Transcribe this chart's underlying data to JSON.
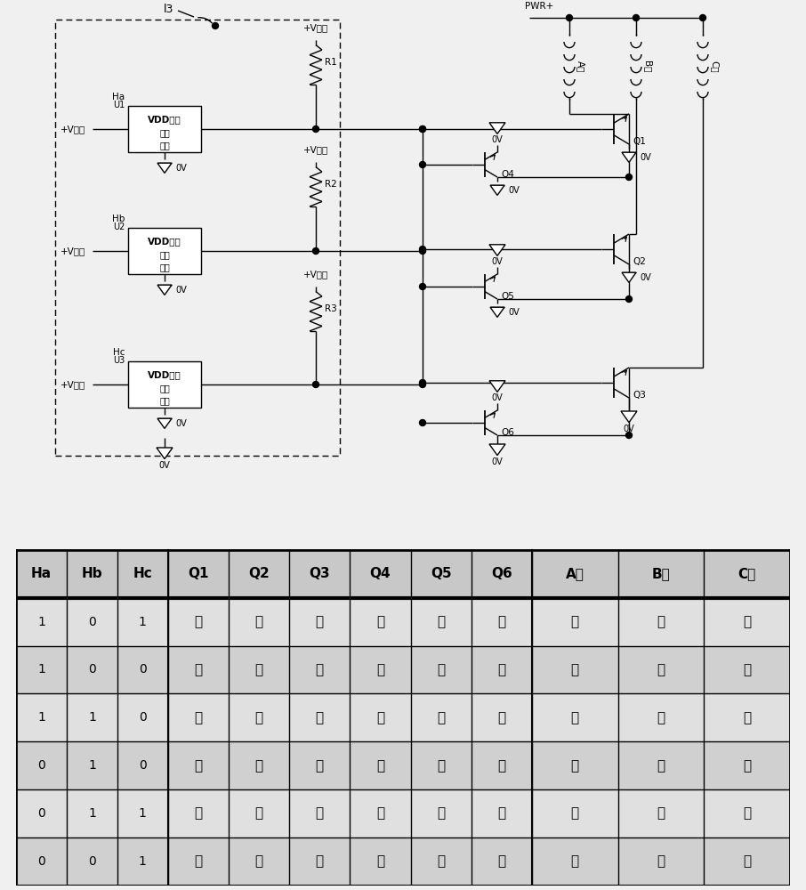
{
  "bg_color": "#f0f0f0",
  "circuit_bg": "#ffffff",
  "table_headers": [
    "Ha",
    "Hb",
    "Hc",
    "Q1",
    "Q2",
    "Q3",
    "Q4",
    "Q5",
    "Q6",
    "A相",
    "B相",
    "C相"
  ],
  "table_rows": [
    [
      "1",
      "0",
      "1",
      "关",
      "关",
      "开",
      "开",
      "开",
      "关",
      "关",
      "关",
      "开"
    ],
    [
      "1",
      "0",
      "0",
      "开",
      "关",
      "关",
      "关",
      "开",
      "关",
      "开",
      "关",
      "关"
    ],
    [
      "1",
      "1",
      "0",
      "开",
      "关",
      "关",
      "关",
      "开",
      "开",
      "开",
      "关",
      "关"
    ],
    [
      "0",
      "1",
      "0",
      "关",
      "开",
      "关",
      "关",
      "关",
      "开",
      "关",
      "开",
      "关"
    ],
    [
      "0",
      "1",
      "1",
      "关",
      "开",
      "关",
      "开",
      "关",
      "开",
      "关",
      "开",
      "关"
    ],
    [
      "0",
      "0",
      "1",
      "关",
      "关",
      "开",
      "开",
      "关",
      "关",
      "关",
      "关",
      "开"
    ]
  ],
  "col_widths": [
    1,
    1,
    1,
    1.2,
    1.2,
    1.2,
    1.2,
    1.2,
    1.2,
    1.7,
    1.7,
    1.7
  ],
  "header_bg": "#c8c8c8",
  "row_bg_even": "#e0e0e0",
  "row_bg_odd": "#d0d0d0",
  "pwr_label": "PWR+",
  "l3_label": "l3",
  "hall_label": "+V靂尔",
  "vdd_label": "VDD输出",
  "zero_v": "0V",
  "phase_labels": [
    "A相",
    "B相",
    "C相"
  ],
  "q_upper_labels": [
    "Q1",
    "Q2",
    "Q3"
  ],
  "q_lower_labels": [
    "Q4",
    "Q5",
    "Q6"
  ],
  "res_labels": [
    "R1",
    "R2",
    "R3"
  ],
  "ha_labels": [
    "Ha",
    "Hb",
    "Hc"
  ],
  "u_labels": [
    "U1",
    "U2",
    "U3"
  ]
}
